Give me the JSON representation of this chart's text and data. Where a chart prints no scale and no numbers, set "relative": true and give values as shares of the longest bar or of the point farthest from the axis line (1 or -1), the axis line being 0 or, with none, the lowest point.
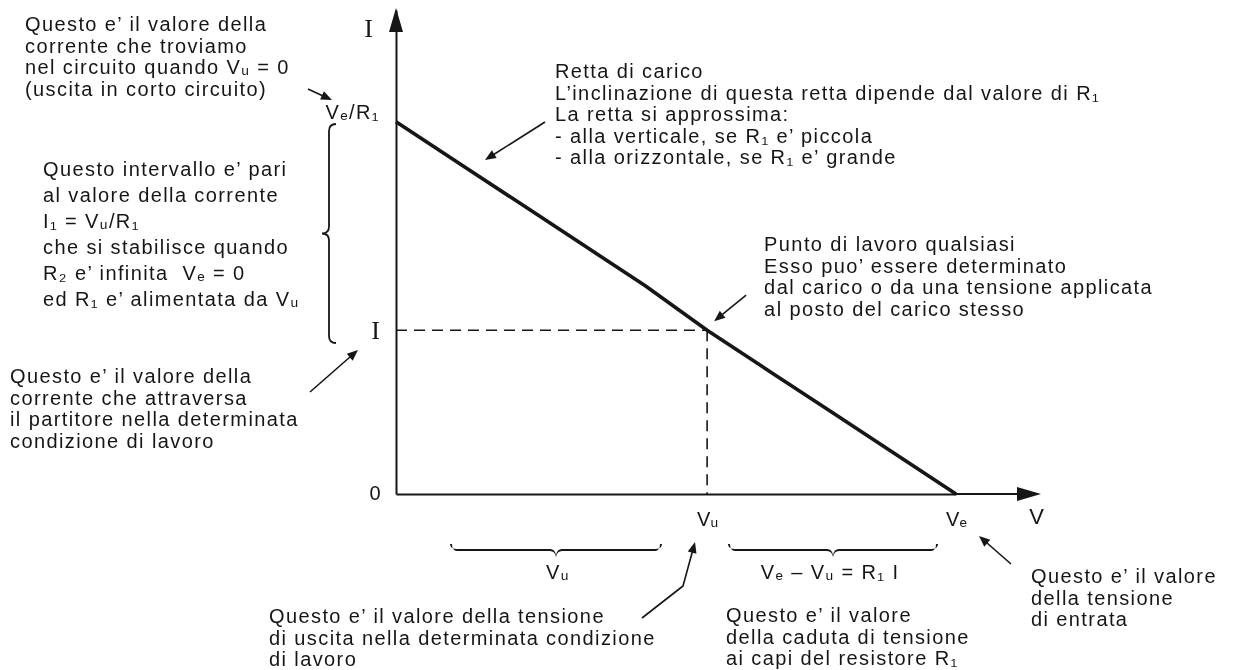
{
  "chart_data": {
    "type": "line",
    "relative": true,
    "categories": [
      null,
      null,
      null,
      null,
      null,
      "Vᵤ",
      null,
      null,
      null,
      "Vₑ"
    ],
    "series": [
      {
        "color": "#161616",
        "values": [
          1,
          0.89,
          0.78,
          0.67,
          0.56,
          0.44,
          0.33,
          0.22,
          0.11,
          0
        ]
      },
      {
        "color": "#161616",
        "values": [
          0.44,
          0.44,
          0.44,
          0.44,
          0.44,
          0.44,
          null,
          null,
          null,
          null
        ],
        "line_style": "dashed"
      },
      {
        "color": "#161616",
        "x": [
          "Vᵤ",
          "Vᵤ"
        ],
        "values": [
          0.44,
          0
        ],
        "line_style": "dashed"
      }
    ],
    "xlabel": "V",
    "ylabel": "I",
    "annotations": [
      "Questo e’ il valore della\ncorrente che troviamo\nnel circuito quando Vᵤ = 0\n(uscita in corto circuito)",
      "Vₑ/R₁",
      "I",
      "0",
      "Questo intervallo e’ pari\nal valore della corrente\nI₁ = Vᵤ/R₁\nche si stabilisce quando\nR₂ e’ infinita  Vₑ = 0\ned R₁ e’ alimentata da Vᵤ",
      "Questo e’ il valore della\ncorrente che attraversa\nil partitore nella determinata\ncondizione di lavoro",
      "Retta di carico\nL’inclinazione di questa retta dipende dal valore di R₁\nLa retta si approssima:\n- alla verticale, se R₁ e’ piccola\n- alla orizzontale, se R₁ e’ grande",
      {
        "text": "Punto di lavoro qualsiasi\nEsso puo’ essere determinato\ndal carico o da una tensione applicata\nal posto del carico stesso",
        "x": "Vᵤ",
        "y": 0.44
      },
      "Vᵤ",
      "Vₑ – Vᵤ = R₁ I",
      "Questo e’ il valore della tensione\ndi uscita nella determinata condizione\ndi lavoro",
      "Questo e’ il valore\ndella caduta di tensione\nai capi del resistore R₁",
      "Questo e’ il valore\ndella tensione\ndi entrata"
    ]
  }
}
